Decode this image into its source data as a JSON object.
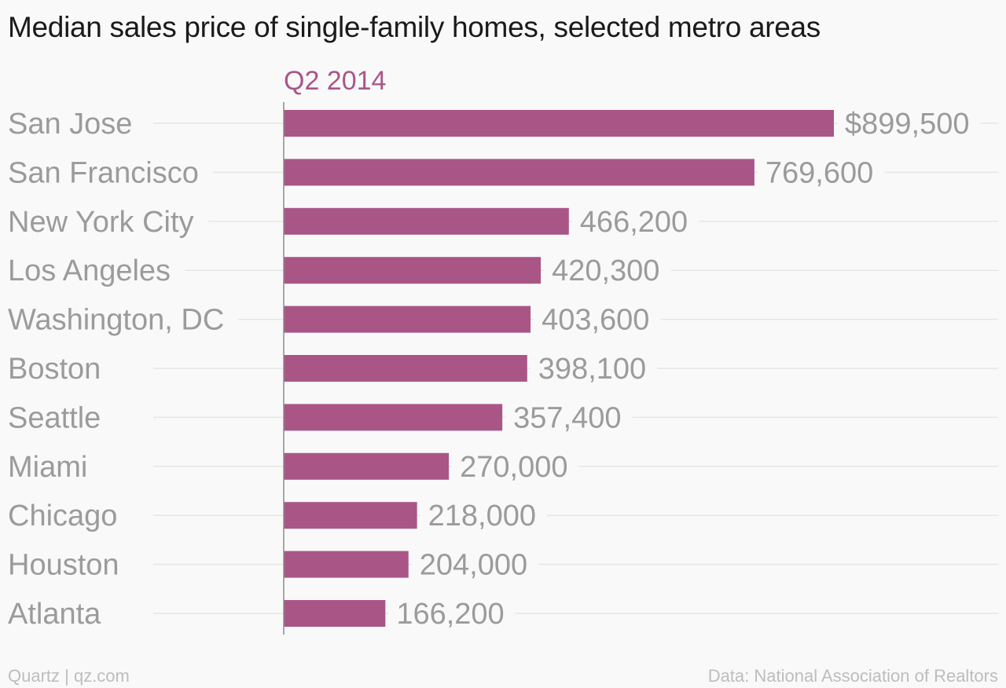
{
  "chart_data": {
    "type": "bar",
    "orientation": "horizontal",
    "title": "Median sales price of single-family homes, selected metro areas",
    "categories": [
      "San Jose",
      "San Francisco",
      "New York City",
      "Los Angeles",
      "Washington, DC",
      "Boston",
      "Seattle",
      "Miami",
      "Chicago",
      "Houston",
      "Atlanta"
    ],
    "series": [
      {
        "name": "Q2 2014",
        "values": [
          899500,
          769600,
          466200,
          420300,
          403600,
          398100,
          357400,
          270000,
          218000,
          204000,
          166200
        ],
        "labels": [
          "$899,500",
          "769,600",
          "466,200",
          "420,300",
          "403,600",
          "398,100",
          "357,400",
          "270,000",
          "218,000",
          "204,000",
          "166,200"
        ]
      }
    ],
    "xlim": [
      0,
      899500
    ],
    "grid": true,
    "colors": {
      "bar": "#a95687",
      "series_label": "#a95687",
      "text": "#9b9b9b",
      "grid": "#e6e6e6",
      "axis": "#8c8c8c"
    }
  },
  "footer": {
    "source_left": "Quartz | qz.com",
    "source_right": "Data: National Association of Realtors"
  }
}
